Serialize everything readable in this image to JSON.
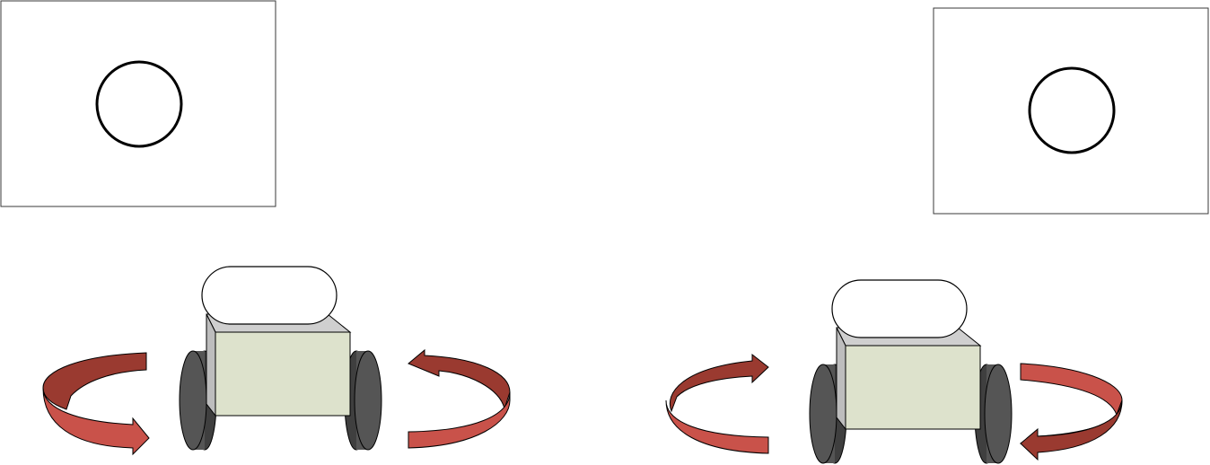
{
  "diagram": {
    "panels": [
      {
        "id": "left",
        "camera_view": {
          "target": "circle"
        },
        "robot": {
          "head": "capsule",
          "wheels": 2
        },
        "rotation_arrows": [
          "arrow-left-wheel",
          "arrow-right-wheel"
        ]
      },
      {
        "id": "right",
        "camera_view": {
          "target": "circle"
        },
        "robot": {
          "head": "capsule",
          "wheels": 2
        },
        "rotation_arrows": [
          "arrow-left-wheel",
          "arrow-right-wheel"
        ]
      }
    ],
    "colors": {
      "arrow_dark": "#9a3a30",
      "arrow_light": "#c9524a",
      "wheel": "#555555",
      "wheel_edge": "#3f3f3f",
      "body_front": "#dde2cc",
      "body_side": "#cfcfcf",
      "outline": "#000000",
      "frame_stroke": "#3a3a3a"
    }
  }
}
